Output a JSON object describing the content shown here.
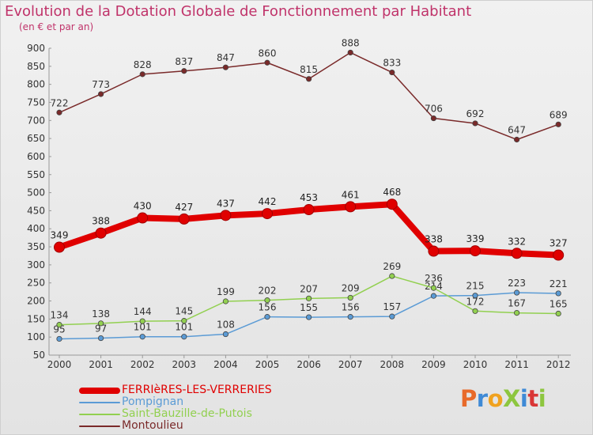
{
  "title": "Evolution de la Dotation Globale de Fonctionnement par Habitant",
  "subtitle": "(en € et par an)",
  "logo": {
    "text": "ProXiti",
    "colors": [
      "#e86a2a",
      "#3f8ad6",
      "#f0a21f",
      "#8dc63f",
      "#3f8ad6",
      "#d93636",
      "#8dc63f"
    ]
  },
  "chart_data": {
    "type": "line",
    "title": "Evolution de la Dotation Globale de Fonctionnement par Habitant",
    "subtitle": "(en € et par an)",
    "x": [
      "2000",
      "2001",
      "2002",
      "2003",
      "2004",
      "2005",
      "2006",
      "2007",
      "2008",
      "2009",
      "2010",
      "2011",
      "2012"
    ],
    "ylim": [
      50,
      900
    ],
    "yticks": [
      50,
      100,
      150,
      200,
      250,
      300,
      350,
      400,
      450,
      500,
      550,
      600,
      650,
      700,
      750,
      800,
      850,
      900
    ],
    "grid": false,
    "legend_position": "bottom-left",
    "series": [
      {
        "name": "FERRIèRES-LES-VERRERIES",
        "color": "#e00000",
        "labelColor": "#222222",
        "highlight": true,
        "values": [
          349,
          388,
          430,
          427,
          437,
          442,
          453,
          461,
          468,
          338,
          339,
          332,
          327
        ]
      },
      {
        "name": "Pompignan",
        "color": "#5b9bd5",
        "labelColor": "#333333",
        "highlight": false,
        "values": [
          95,
          97,
          101,
          101,
          108,
          156,
          155,
          156,
          157,
          214,
          215,
          223,
          221
        ]
      },
      {
        "name": "Saint-Bauzille-de-Putois",
        "color": "#92d050",
        "labelColor": "#333333",
        "highlight": false,
        "values": [
          134,
          138,
          144,
          145,
          199,
          202,
          207,
          209,
          269,
          236,
          172,
          167,
          165
        ]
      },
      {
        "name": "Montoulieu",
        "color": "#7a2a2a",
        "labelColor": "#333333",
        "highlight": false,
        "values": [
          722,
          773,
          828,
          837,
          847,
          860,
          815,
          888,
          833,
          706,
          692,
          647,
          689
        ]
      }
    ]
  }
}
